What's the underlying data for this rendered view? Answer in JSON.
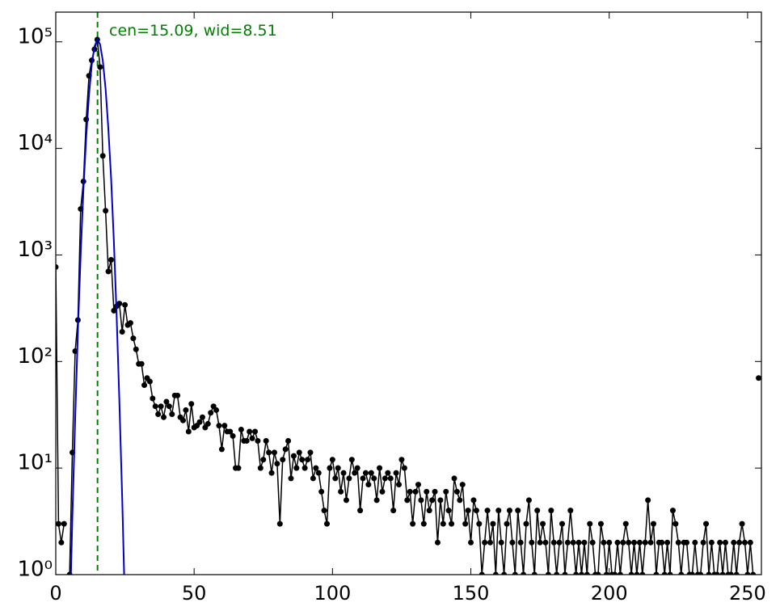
{
  "chart_data": {
    "type": "errorbar_fit",
    "log_y": true,
    "annotation": "cen=15.09, wid=8.51",
    "center_line": 15.09,
    "center_line_color": "#008000",
    "xlim": [
      0,
      255
    ],
    "ylim": [
      1,
      190000
    ],
    "xticks": [
      0,
      50,
      100,
      150,
      200,
      250
    ],
    "yticks": [
      {
        "value": 1,
        "label": "10⁰"
      },
      {
        "value": 10,
        "label": "10¹"
      },
      {
        "value": 100,
        "label": "10²"
      },
      {
        "value": 1000,
        "label": "10³"
      },
      {
        "value": 10000,
        "label": "10⁴"
      },
      {
        "value": 100000,
        "label": "10⁵"
      }
    ],
    "series": [
      {
        "kind": "points",
        "color": "#000000",
        "x": [
          0,
          1,
          2,
          3,
          4,
          5,
          6,
          7,
          8,
          9,
          10,
          11,
          12,
          13,
          14,
          15,
          16,
          17,
          18,
          19,
          20,
          21,
          22,
          23,
          24,
          25,
          26,
          27,
          28,
          29,
          30,
          31,
          32,
          33,
          34,
          35,
          36,
          37,
          38,
          39,
          40,
          41,
          42,
          43,
          44,
          45,
          46,
          47,
          48,
          49,
          50,
          51,
          52,
          53,
          54,
          55,
          56,
          57,
          58,
          59,
          60,
          61,
          62,
          63,
          64,
          65,
          66,
          67,
          68,
          69,
          70,
          71,
          72,
          73,
          74,
          75,
          76,
          77,
          78,
          79,
          80,
          81,
          82,
          83,
          84,
          85,
          86,
          87,
          88,
          89,
          90,
          91,
          92,
          93,
          94,
          95,
          96,
          97,
          98,
          99,
          100,
          101,
          102,
          103,
          104,
          105,
          106,
          107,
          108,
          109,
          110,
          111,
          112,
          113,
          114,
          115,
          116,
          117,
          118,
          119,
          120,
          121,
          122,
          123,
          124,
          125,
          126,
          127,
          128,
          129,
          130,
          131,
          132,
          133,
          134,
          135,
          136,
          137,
          138,
          139,
          140,
          141,
          142,
          143,
          144,
          145,
          146,
          147,
          148,
          149,
          150,
          151,
          152,
          153,
          154,
          155,
          156,
          157,
          158,
          159,
          160,
          161,
          162,
          163,
          164,
          165,
          166,
          167,
          168,
          169,
          170,
          171,
          172,
          173,
          174,
          175,
          176,
          177,
          178,
          179,
          180,
          181,
          182,
          183,
          184,
          185,
          186,
          187,
          188,
          189,
          190,
          191,
          192,
          193,
          194,
          195,
          196,
          197,
          198,
          199,
          200,
          201,
          202,
          203,
          204,
          205,
          206,
          207,
          208,
          209,
          210,
          211,
          212,
          213,
          214,
          215,
          216,
          217,
          218,
          219,
          220,
          221,
          222,
          223,
          224,
          225,
          226,
          227,
          228,
          229,
          230,
          231,
          232,
          233,
          234,
          235,
          236,
          237,
          238,
          239,
          240,
          241,
          242,
          243,
          244,
          245,
          246,
          247,
          248,
          249,
          250,
          251,
          252,
          253,
          254
        ],
        "values": [
          770,
          3,
          2,
          3,
          null,
          1,
          14,
          125,
          245,
          2700,
          4900,
          18700,
          48000,
          67000,
          85000,
          105000,
          58000,
          8500,
          2600,
          700,
          900,
          300,
          330,
          350,
          190,
          340,
          220,
          230,
          165,
          130,
          95,
          95,
          60,
          70,
          65,
          45,
          38,
          32,
          38,
          30,
          42,
          38,
          32,
          48,
          48,
          30,
          28,
          35,
          22,
          40,
          24,
          25,
          27,
          30,
          24,
          26,
          33,
          38,
          35,
          25,
          15,
          25,
          22,
          22,
          20,
          10,
          10,
          23,
          18,
          18,
          22,
          19,
          22,
          18,
          10,
          12,
          18,
          14,
          9,
          14,
          11,
          3,
          12,
          15,
          18,
          8,
          13,
          10,
          14,
          12,
          10,
          12,
          14,
          8,
          10,
          9,
          6,
          4,
          3,
          10,
          12,
          8,
          10,
          6,
          9,
          5,
          8,
          12,
          9,
          10,
          4,
          8,
          9,
          7,
          9,
          8,
          5,
          10,
          6,
          8,
          9,
          8,
          4,
          9,
          7,
          12,
          10,
          5,
          6,
          3,
          6,
          7,
          5,
          3,
          6,
          4,
          5,
          6,
          2,
          5,
          3,
          6,
          4,
          3,
          8,
          6,
          5,
          7,
          3,
          4,
          2,
          5,
          4,
          3,
          1,
          2,
          4,
          2,
          3,
          1,
          4,
          2,
          1,
          3,
          4,
          2,
          1,
          4,
          2,
          1,
          3,
          5,
          2,
          1,
          4,
          2,
          3,
          2,
          1,
          4,
          2,
          1,
          2,
          3,
          1,
          2,
          4,
          2,
          1,
          2,
          1,
          2,
          1,
          3,
          2,
          1,
          1,
          3,
          2,
          1,
          2,
          1,
          1,
          2,
          1,
          2,
          3,
          2,
          1,
          2,
          1,
          2,
          1,
          2,
          5,
          2,
          3,
          1,
          2,
          2,
          1,
          2,
          1,
          4,
          3,
          2,
          1,
          2,
          2,
          1,
          1,
          2,
          1,
          1,
          2,
          3,
          1,
          2,
          1,
          1,
          2,
          1,
          2,
          1,
          1,
          2,
          1,
          2,
          3,
          2,
          1,
          2,
          1,
          null,
          70
        ]
      },
      {
        "kind": "line",
        "color": "#0000cc",
        "x": [
          5,
          6,
          7,
          8,
          9,
          10,
          11,
          12,
          13,
          14,
          15,
          16,
          17,
          18,
          19,
          20,
          21,
          22,
          23,
          24,
          25
        ],
        "values": [
          0.31,
          3.4,
          29,
          196,
          1015,
          4100,
          13000,
          31800,
          60800,
          90500,
          105000,
          94700,
          66500,
          36400,
          15500,
          5180,
          1330,
          269,
          42,
          5.2,
          0.49
        ]
      }
    ]
  }
}
